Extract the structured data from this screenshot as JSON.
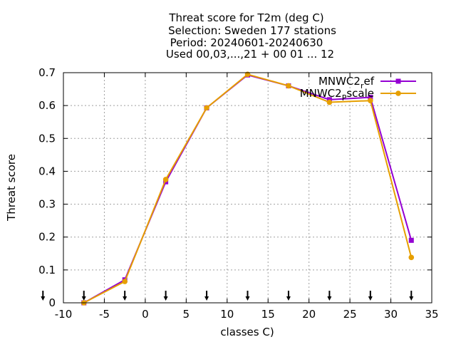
{
  "chart_data": {
    "type": "line",
    "title": [
      "Threat score  for T2m (deg C)",
      "Selection: Sweden     177 stations",
      "Period: 20240601-20240630",
      "Used 00,03,...,21 + 00 01 ... 12"
    ],
    "xlabel": "classes C)",
    "ylabel": "Threat score",
    "xlim": [
      -10,
      35
    ],
    "ylim": [
      0,
      0.7
    ],
    "xticks": [
      -10,
      -5,
      0,
      5,
      10,
      15,
      20,
      25,
      30,
      35
    ],
    "yticks": [
      0,
      0.1,
      0.2,
      0.3,
      0.4,
      0.5,
      0.6,
      0.7
    ],
    "xtick_labels": [
      "-10",
      "-5",
      "0",
      "5",
      "10",
      "15",
      "20",
      "25",
      "30",
      "35"
    ],
    "ytick_labels": [
      "0",
      "0.1",
      "0.2",
      "0.3",
      "0.4",
      "0.5",
      "0.6",
      "0.7"
    ],
    "grid": true,
    "legend_position": "top-right",
    "arrow_markers_x": [
      -12.5,
      -7.5,
      -2.5,
      2.5,
      7.5,
      12.5,
      17.5,
      22.5,
      27.5,
      32.5
    ],
    "series": [
      {
        "name": "MNWC2_ref",
        "legend_base": "MNWC2",
        "legend_sub": "r",
        "legend_rest": "ef",
        "color": "#9400d3",
        "x": [
          -7.5,
          -2.5,
          2.5,
          7.5,
          12.5,
          17.5,
          22.5,
          27.5,
          32.5
        ],
        "values": [
          0.0,
          0.07,
          0.368,
          0.593,
          0.693,
          0.66,
          0.618,
          0.625,
          0.19
        ]
      },
      {
        "name": "MNWC2_Pscale",
        "legend_base": "MNWC2",
        "legend_sub": "P",
        "legend_rest": "scale",
        "color": "#e69f00",
        "x": [
          -7.5,
          -2.5,
          2.5,
          7.5,
          12.5,
          17.5,
          22.5,
          27.5,
          32.5
        ],
        "values": [
          0.0,
          0.065,
          0.375,
          0.593,
          0.695,
          0.66,
          0.61,
          0.615,
          0.138
        ]
      }
    ]
  }
}
